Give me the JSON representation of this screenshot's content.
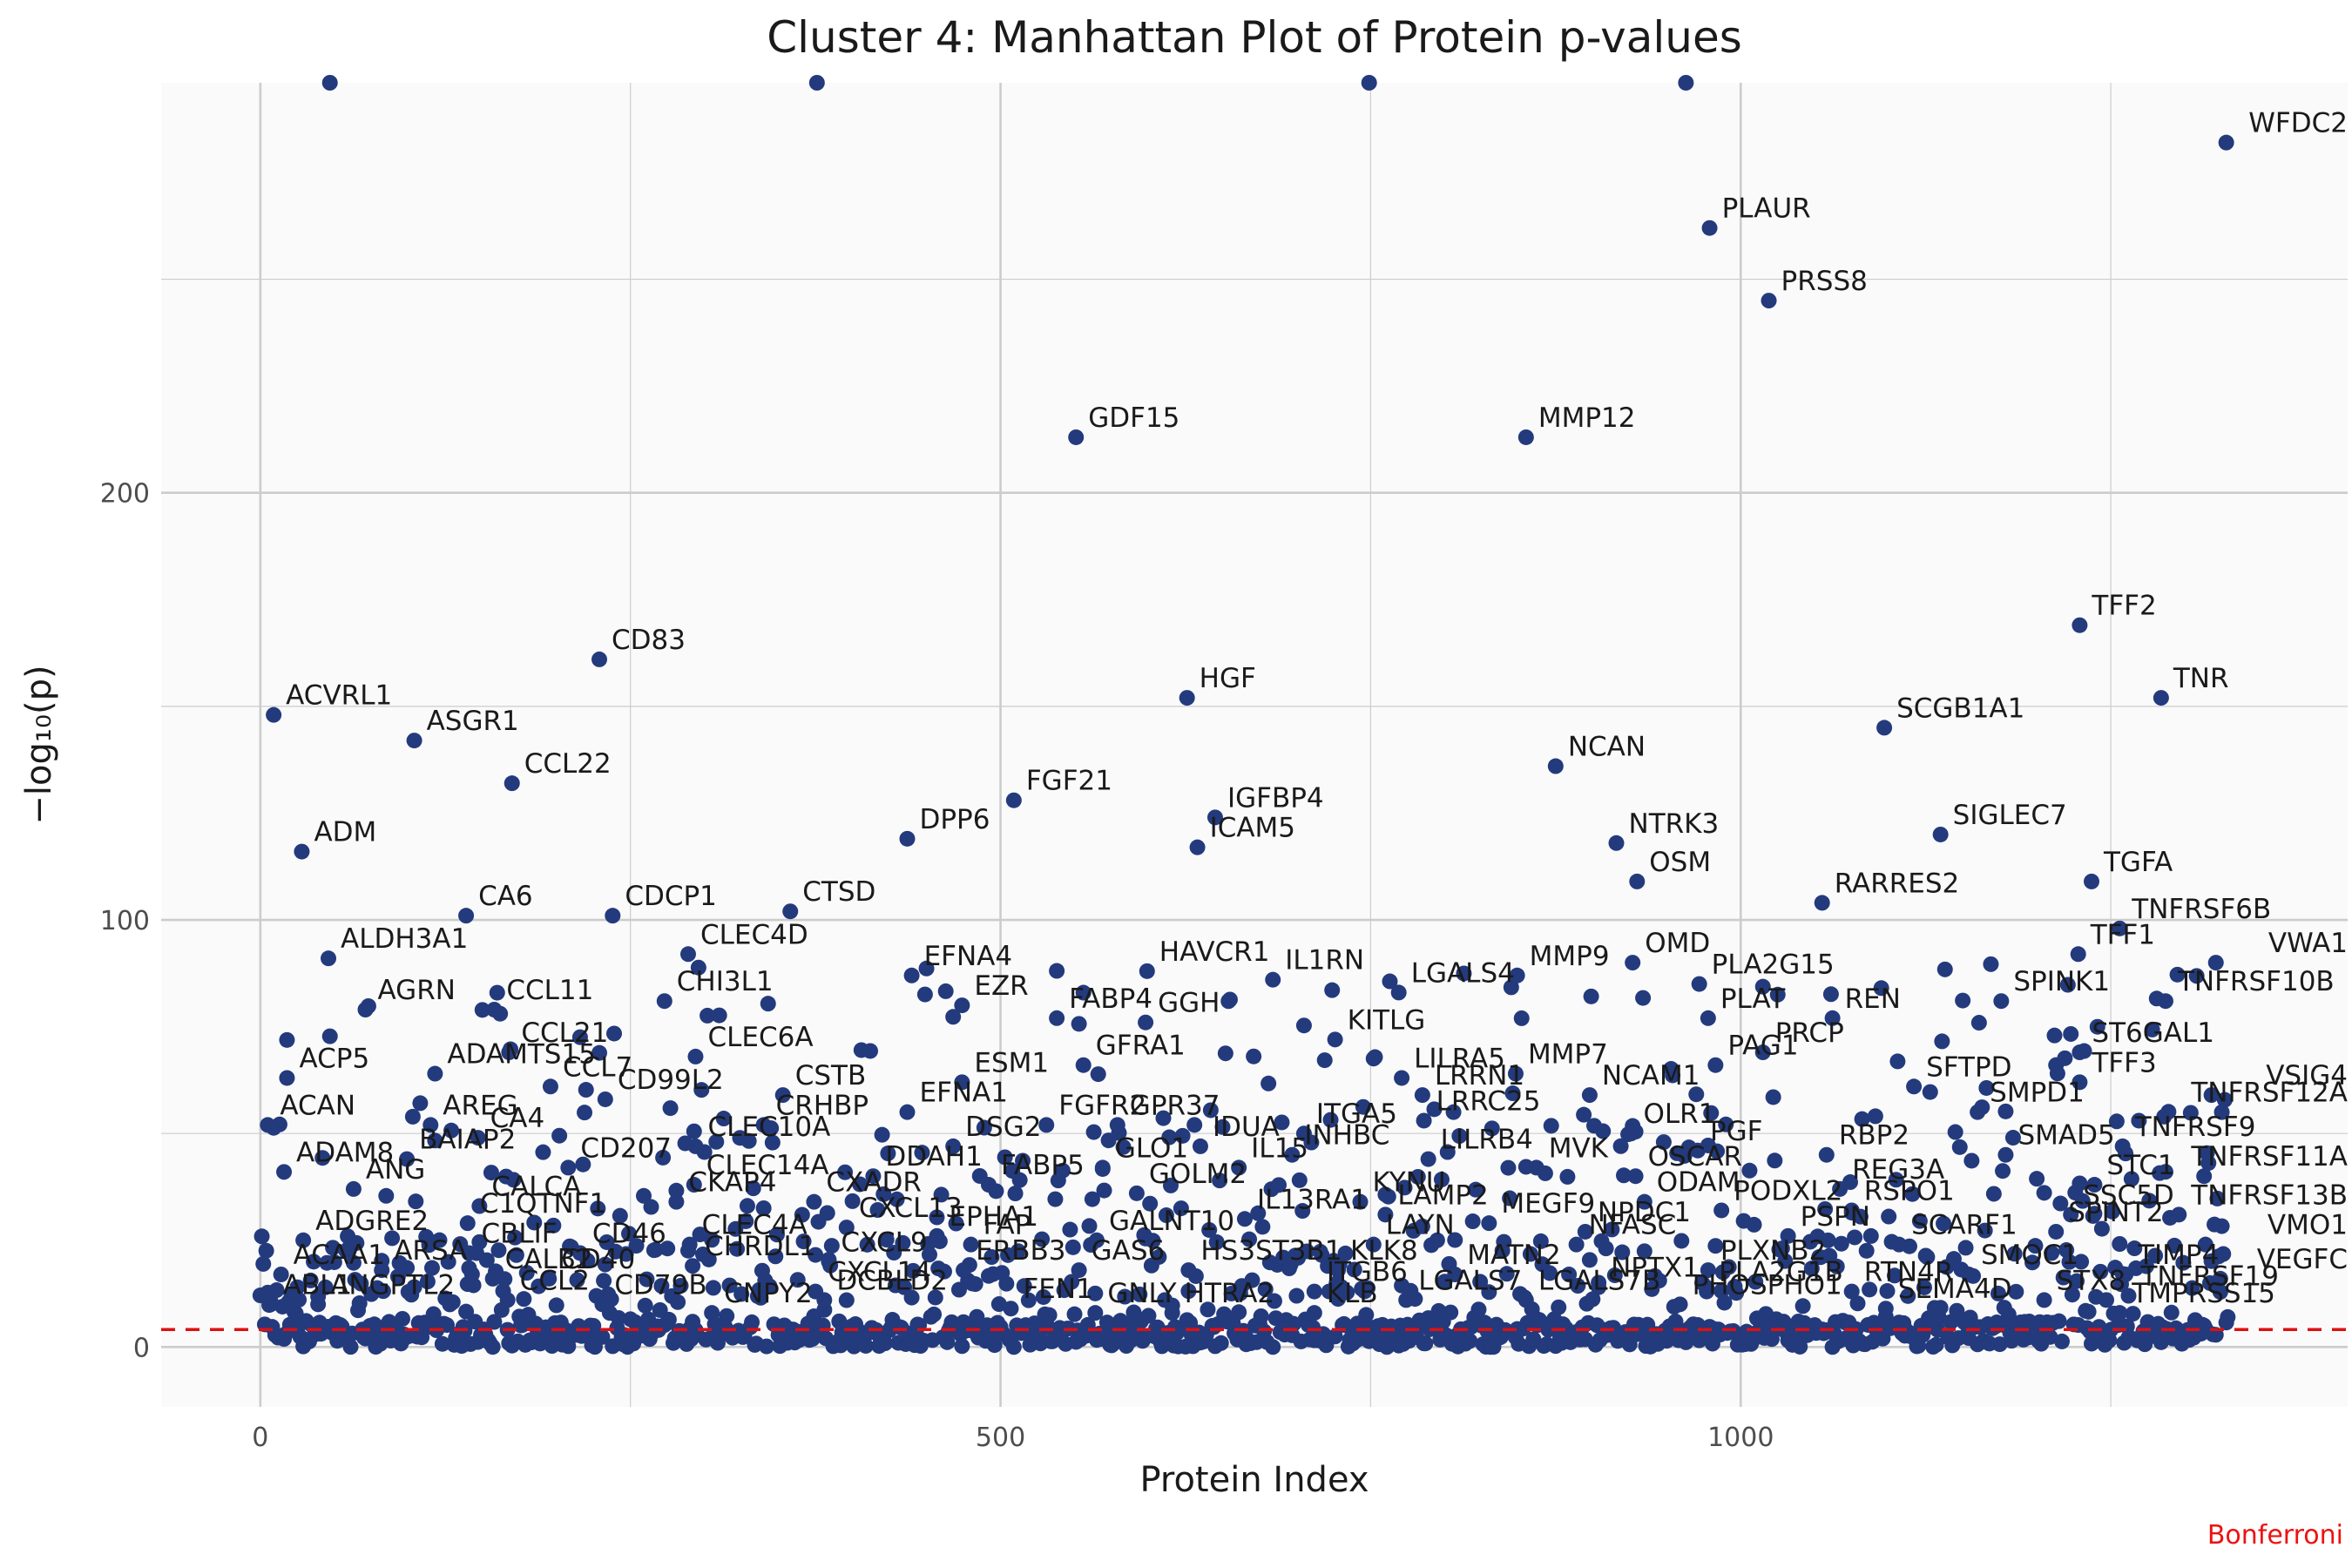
{
  "chart_data": {
    "type": "scatter",
    "title": "Cluster 4: Manhattan Plot of Protein p-values",
    "xlabel": "Protein Index",
    "ylabel": "−log₁₀(p)",
    "xlim": [
      -67,
      1410
    ],
    "ylim": [
      -14,
      296
    ],
    "xticks": [
      0,
      500,
      1000
    ],
    "yticks": [
      0,
      100,
      200
    ],
    "threshold": {
      "value": 4.1,
      "color": "#dd1111",
      "label": "Bonferroni"
    },
    "point_color": "#233a7d",
    "panel_color": "#fafafa",
    "grid_color": "#cccccc",
    "labeled_points": [
      {
        "name": "WFDC2",
        "x": 1328,
        "y": 282
      },
      {
        "name": "PLAUR",
        "x": 979,
        "y": 262
      },
      {
        "name": "PRSS8",
        "x": 1019,
        "y": 245
      },
      {
        "name": "GDF15",
        "x": 551,
        "y": 213
      },
      {
        "name": "MMP12",
        "x": 855,
        "y": 213
      },
      {
        "name": "CD83",
        "x": 229,
        "y": 161
      },
      {
        "name": "TFF2",
        "x": 1229,
        "y": 169
      },
      {
        "name": "TNR",
        "x": 1284,
        "y": 152
      },
      {
        "name": "HGF",
        "x": 626,
        "y": 152
      },
      {
        "name": "ACVRL1",
        "x": 9,
        "y": 148
      },
      {
        "name": "ASGR1",
        "x": 104,
        "y": 142
      },
      {
        "name": "SCGB1A1",
        "x": 1097,
        "y": 145
      },
      {
        "name": "CCL22",
        "x": 170,
        "y": 132
      },
      {
        "name": "NCAN",
        "x": 875,
        "y": 136
      },
      {
        "name": "FGF21",
        "x": 509,
        "y": 128
      },
      {
        "name": "IGFBP4",
        "x": 645,
        "y": 124
      },
      {
        "name": "DPP6",
        "x": 437,
        "y": 119
      },
      {
        "name": "ICAM5",
        "x": 633,
        "y": 117
      },
      {
        "name": "ADM",
        "x": 28,
        "y": 116
      },
      {
        "name": "NTRK3",
        "x": 916,
        "y": 118
      },
      {
        "name": "SIGLEC7",
        "x": 1135,
        "y": 120
      },
      {
        "name": "OSM",
        "x": 930,
        "y": 109
      },
      {
        "name": "TGFA",
        "x": 1237,
        "y": 109
      },
      {
        "name": "RARRES2",
        "x": 1055,
        "y": 104
      },
      {
        "name": "CA6",
        "x": 139,
        "y": 101
      },
      {
        "name": "CDCP1",
        "x": 238,
        "y": 101
      },
      {
        "name": "CTSD",
        "x": 358,
        "y": 102
      },
      {
        "name": "TNFRSF6B",
        "x": 1256,
        "y": 98
      },
      {
        "name": "CLEC4D",
        "x": 289,
        "y": 92
      },
      {
        "name": "ALDH3A1",
        "x": 46,
        "y": 91
      },
      {
        "name": "EFNA4",
        "x": 440,
        "y": 87
      },
      {
        "name": "HAVCR1",
        "x": 599,
        "y": 88
      },
      {
        "name": "MMP9",
        "x": 849,
        "y": 87
      },
      {
        "name": "OMD",
        "x": 927,
        "y": 90
      },
      {
        "name": "VWA1",
        "x": 1321,
        "y": 90
      },
      {
        "name": "TFF1",
        "x": 1228,
        "y": 92
      },
      {
        "name": "AGRN",
        "x": 71,
        "y": 79
      },
      {
        "name": "CCL11",
        "x": 158,
        "y": 79
      },
      {
        "name": "CHI3L1",
        "x": 273,
        "y": 81
      },
      {
        "name": "EZR",
        "x": 474,
        "y": 80
      },
      {
        "name": "IL1RN",
        "x": 684,
        "y": 86
      },
      {
        "name": "LGALS4",
        "x": 769,
        "y": 83
      },
      {
        "name": "PLA2G15",
        "x": 972,
        "y": 85
      },
      {
        "name": "TNFRSF10B",
        "x": 1287,
        "y": 81
      },
      {
        "name": "SPINK1",
        "x": 1176,
        "y": 81
      },
      {
        "name": "GGH",
        "x": 598,
        "y": 76
      },
      {
        "name": "FABP4",
        "x": 538,
        "y": 77
      },
      {
        "name": "KITLG",
        "x": 726,
        "y": 72
      },
      {
        "name": "PLAT",
        "x": 978,
        "y": 77
      },
      {
        "name": "REN",
        "x": 1062,
        "y": 77
      },
      {
        "name": "CCL21",
        "x": 168,
        "y": 69
      },
      {
        "name": "CLEC6A",
        "x": 294,
        "y": 68
      },
      {
        "name": "ADAMTS15",
        "x": 118,
        "y": 64
      },
      {
        "name": "GFRA1",
        "x": 556,
        "y": 66
      },
      {
        "name": "ESM1",
        "x": 474,
        "y": 62
      },
      {
        "name": "LILRA5",
        "x": 771,
        "y": 63
      },
      {
        "name": "MMP7",
        "x": 848,
        "y": 64
      },
      {
        "name": "PAG1",
        "x": 983,
        "y": 66
      },
      {
        "name": "PRCP",
        "x": 1015,
        "y": 69
      },
      {
        "name": "ST6GAL1",
        "x": 1229,
        "y": 69
      },
      {
        "name": "TFF3",
        "x": 1229,
        "y": 62
      },
      {
        "name": "SFTPD",
        "x": 1117,
        "y": 61
      },
      {
        "name": "VSIG4",
        "x": 1318,
        "y": 59
      },
      {
        "name": "ACP5",
        "x": 18,
        "y": 63
      },
      {
        "name": "CCL7",
        "x": 196,
        "y": 61
      },
      {
        "name": "CD99L2",
        "x": 233,
        "y": 58
      },
      {
        "name": "CSTB",
        "x": 353,
        "y": 59
      },
      {
        "name": "EFNA1",
        "x": 437,
        "y": 55
      },
      {
        "name": "GPR37",
        "x": 579,
        "y": 52
      },
      {
        "name": "LRRN1",
        "x": 785,
        "y": 59
      },
      {
        "name": "NCAM1",
        "x": 898,
        "y": 59
      },
      {
        "name": "SMPD1",
        "x": 1160,
        "y": 55
      },
      {
        "name": "TNFRSF12A",
        "x": 1325,
        "y": 55
      },
      {
        "name": "ACAN",
        "x": 5,
        "y": 52
      },
      {
        "name": "AREG",
        "x": 115,
        "y": 52
      },
      {
        "name": "CA4",
        "x": 147,
        "y": 49
      },
      {
        "name": "CRHBP",
        "x": 340,
        "y": 52
      },
      {
        "name": "DSG2",
        "x": 468,
        "y": 47
      },
      {
        "name": "FGFR2",
        "x": 531,
        "y": 52
      },
      {
        "name": "IDUA",
        "x": 635,
        "y": 47
      },
      {
        "name": "ITGA5",
        "x": 705,
        "y": 50
      },
      {
        "name": "LRRC25",
        "x": 786,
        "y": 53
      },
      {
        "name": "OLR1",
        "x": 926,
        "y": 50
      },
      {
        "name": "PGF",
        "x": 971,
        "y": 46
      },
      {
        "name": "RBP2",
        "x": 1058,
        "y": 45
      },
      {
        "name": "SMAD5",
        "x": 1179,
        "y": 45
      },
      {
        "name": "TNFRSF9",
        "x": 1258,
        "y": 47
      },
      {
        "name": "ADAM8",
        "x": 16,
        "y": 41
      },
      {
        "name": "BAIAP2",
        "x": 99,
        "y": 44
      },
      {
        "name": "CD207",
        "x": 208,
        "y": 42
      },
      {
        "name": "CLEC10A",
        "x": 294,
        "y": 47
      },
      {
        "name": "DDAH1",
        "x": 414,
        "y": 40
      },
      {
        "name": "FABP5",
        "x": 492,
        "y": 38
      },
      {
        "name": "GLO1",
        "x": 569,
        "y": 42
      },
      {
        "name": "IL15",
        "x": 661,
        "y": 42
      },
      {
        "name": "INHBC",
        "x": 697,
        "y": 45
      },
      {
        "name": "LILRB4",
        "x": 789,
        "y": 44
      },
      {
        "name": "MVK",
        "x": 862,
        "y": 42
      },
      {
        "name": "OSCAR",
        "x": 929,
        "y": 40
      },
      {
        "name": "REG3A",
        "x": 1067,
        "y": 37
      },
      {
        "name": "STC1",
        "x": 1239,
        "y": 38
      },
      {
        "name": "TNFRSF11A",
        "x": 1313,
        "y": 40
      },
      {
        "name": "ANG",
        "x": 63,
        "y": 37
      },
      {
        "name": "CALCA",
        "x": 148,
        "y": 33
      },
      {
        "name": "CKAP4",
        "x": 281,
        "y": 34
      },
      {
        "name": "CLEC14A",
        "x": 293,
        "y": 38
      },
      {
        "name": "CXADR",
        "x": 374,
        "y": 34
      },
      {
        "name": "GOLM2",
        "x": 592,
        "y": 36
      },
      {
        "name": "IL13RA1",
        "x": 665,
        "y": 30
      },
      {
        "name": "KYNU",
        "x": 743,
        "y": 34
      },
      {
        "name": "LAMP2",
        "x": 760,
        "y": 31
      },
      {
        "name": "MEGF9",
        "x": 830,
        "y": 29
      },
      {
        "name": "ODAM",
        "x": 935,
        "y": 34
      },
      {
        "name": "PODXL2",
        "x": 987,
        "y": 32
      },
      {
        "name": "RSPO1",
        "x": 1075,
        "y": 32
      },
      {
        "name": "SSC5D",
        "x": 1223,
        "y": 31
      },
      {
        "name": "TNFRSF13B",
        "x": 1296,
        "y": 31
      },
      {
        "name": "ADGRE2",
        "x": 29,
        "y": 25
      },
      {
        "name": "C1QTNF1",
        "x": 140,
        "y": 29
      },
      {
        "name": "NPDC1",
        "x": 895,
        "y": 27
      },
      {
        "name": "PSPN",
        "x": 1032,
        "y": 26
      },
      {
        "name": "SPINT2",
        "x": 1213,
        "y": 27
      },
      {
        "name": "VMO1",
        "x": 1314,
        "y": 24
      },
      {
        "name": "CBLIF",
        "x": 141,
        "y": 22
      },
      {
        "name": "CD46",
        "x": 216,
        "y": 22
      },
      {
        "name": "CLEC4A",
        "x": 290,
        "y": 24
      },
      {
        "name": "CXCL13",
        "x": 396,
        "y": 28
      },
      {
        "name": "EPHA1",
        "x": 457,
        "y": 26
      },
      {
        "name": "FAP",
        "x": 480,
        "y": 24
      },
      {
        "name": "GALNT10",
        "x": 565,
        "y": 25
      },
      {
        "name": "LAYN",
        "x": 752,
        "y": 24
      },
      {
        "name": "NFASC",
        "x": 889,
        "y": 24
      },
      {
        "name": "SCARF1",
        "x": 1107,
        "y": 24
      },
      {
        "name": "ACAA1",
        "x": 14,
        "y": 17
      },
      {
        "name": "ARSA",
        "x": 82,
        "y": 18
      },
      {
        "name": "CALB2",
        "x": 157,
        "y": 16
      },
      {
        "name": "CD40",
        "x": 195,
        "y": 16
      },
      {
        "name": "CHRDL1",
        "x": 292,
        "y": 19
      },
      {
        "name": "CXCL9",
        "x": 384,
        "y": 20
      },
      {
        "name": "ERBB3",
        "x": 475,
        "y": 18
      },
      {
        "name": "GAS6",
        "x": 553,
        "y": 18
      },
      {
        "name": "HS3ST3B1",
        "x": 627,
        "y": 18
      },
      {
        "name": "KLK8",
        "x": 728,
        "y": 18
      },
      {
        "name": "MATN2",
        "x": 807,
        "y": 17
      },
      {
        "name": "PLXNB2",
        "x": 978,
        "y": 18
      },
      {
        "name": "SMOC1",
        "x": 1154,
        "y": 17
      },
      {
        "name": "TIMP4",
        "x": 1260,
        "y": 17
      },
      {
        "name": "VEGFC",
        "x": 1324,
        "y": 16
      },
      {
        "name": "CXCL14",
        "x": 375,
        "y": 13
      },
      {
        "name": "ITGB6",
        "x": 712,
        "y": 13
      },
      {
        "name": "NPTX1",
        "x": 904,
        "y": 14
      },
      {
        "name": "PLA2G1B",
        "x": 977,
        "y": 13
      },
      {
        "name": "RTN4R",
        "x": 1075,
        "y": 13
      },
      {
        "name": "TNFRSF19",
        "x": 1262,
        "y": 12
      },
      {
        "name": "ABL1",
        "x": 7,
        "y": 10
      },
      {
        "name": "ANGPTL2",
        "x": 39,
        "y": 10
      },
      {
        "name": "CCL2",
        "x": 167,
        "y": 11
      },
      {
        "name": "CD79B",
        "x": 231,
        "y": 10
      },
      {
        "name": "CNPY2",
        "x": 305,
        "y": 8
      },
      {
        "name": "DCBLD2",
        "x": 381,
        "y": 11
      },
      {
        "name": "FEN1",
        "x": 507,
        "y": 9
      },
      {
        "name": "GNLY",
        "x": 564,
        "y": 8
      },
      {
        "name": "HTRA2",
        "x": 616,
        "y": 8
      },
      {
        "name": "KLB",
        "x": 712,
        "y": 8
      },
      {
        "name": "LGALS7",
        "x": 774,
        "y": 11
      },
      {
        "name": "LGALS7B",
        "x": 855,
        "y": 11
      },
      {
        "name": "PHOSPHO1",
        "x": 959,
        "y": 10
      },
      {
        "name": "SEMA4D",
        "x": 1098,
        "y": 9
      },
      {
        "name": "STX8",
        "x": 1205,
        "y": 11
      },
      {
        "name": "TMPRSS15",
        "x": 1256,
        "y": 8
      }
    ],
    "unlabeled_points_note": "plus a dense band of roughly 1300 unlabeled proteins mostly between -log10(p) 0 and 90",
    "clipped_points": [
      {
        "x": 47,
        "y": 296
      },
      {
        "x": 376,
        "y": 296
      },
      {
        "x": 749,
        "y": 296
      },
      {
        "x": 963,
        "y": 296
      }
    ]
  }
}
